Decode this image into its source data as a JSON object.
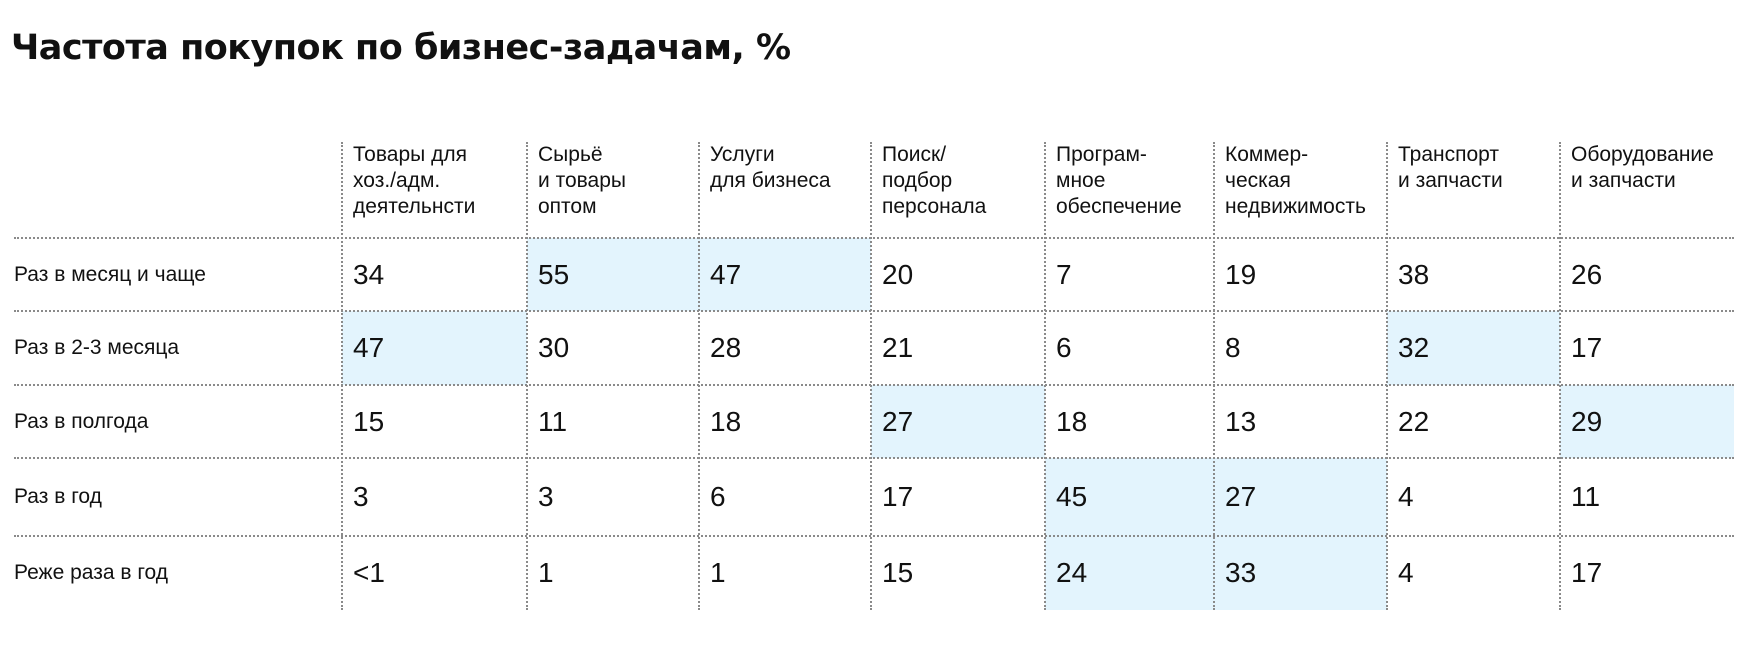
{
  "chart_data": {
    "type": "table",
    "title": "Частота покупок по бизнес-задачам, %",
    "columns": [
      {
        "lines": [
          "Товары для",
          "хоз./адм.",
          "деятельнсти"
        ]
      },
      {
        "lines": [
          "Сырьё",
          "и товары",
          "оптом"
        ]
      },
      {
        "lines": [
          "Услуги",
          "для бизнеса"
        ]
      },
      {
        "lines": [
          "Поиск/",
          "подбор",
          "персонала"
        ]
      },
      {
        "lines": [
          "Програм-",
          "мное",
          "обеспечение"
        ]
      },
      {
        "lines": [
          "Коммер-",
          "ческая",
          "недвижимость"
        ]
      },
      {
        "lines": [
          "Транспорт",
          "и запчасти"
        ]
      },
      {
        "lines": [
          "Оборудование",
          "и запчасти"
        ]
      }
    ],
    "rows": [
      {
        "label": "Раз в месяц и чаще",
        "values": [
          "34",
          "55",
          "47",
          "20",
          "7",
          "19",
          "38",
          "26"
        ],
        "highlight": [
          false,
          true,
          true,
          false,
          false,
          false,
          false,
          false
        ]
      },
      {
        "label": "Раз в 2-3 месяца",
        "values": [
          "47",
          "30",
          "28",
          "21",
          "6",
          "8",
          "32",
          "17"
        ],
        "highlight": [
          true,
          false,
          false,
          false,
          false,
          false,
          true,
          false
        ]
      },
      {
        "label": "Раз в полгода",
        "values": [
          "15",
          "11",
          "18",
          "27",
          "18",
          "13",
          "22",
          "29"
        ],
        "highlight": [
          false,
          false,
          false,
          true,
          false,
          false,
          false,
          true
        ]
      },
      {
        "label": "Раз в год",
        "values": [
          "3",
          "3",
          "6",
          "17",
          "45",
          "27",
          "4",
          "11"
        ],
        "highlight": [
          false,
          false,
          false,
          false,
          true,
          true,
          false,
          false
        ]
      },
      {
        "label": "Реже раза в год",
        "values": [
          "<1",
          "1",
          "1",
          "15",
          "24",
          "33",
          "4",
          "17"
        ],
        "highlight": [
          false,
          false,
          false,
          false,
          true,
          true,
          false,
          false
        ]
      }
    ],
    "highlight_color": "#e3f4fd",
    "grid_color": "#8a8a8a"
  }
}
